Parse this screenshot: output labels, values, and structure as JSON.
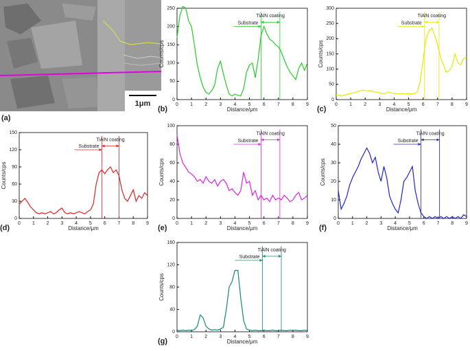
{
  "figure": {
    "panel_label": "(a)",
    "scale_bar": "1μm"
  },
  "chart_data": [
    {
      "type": "line",
      "panel_label": "(b)",
      "xlabel": "Distance/μm",
      "ylabel": "Counts/cps",
      "xlim": [
        0,
        9
      ],
      "xticks": [
        0,
        1,
        2,
        3,
        4,
        5,
        6,
        7,
        8,
        9
      ],
      "ylim": [
        0,
        250
      ],
      "yticks": [
        0,
        50,
        100,
        150,
        200,
        250
      ],
      "annotations": {
        "substrate": "Substrate",
        "coating": "TiAlN coating"
      },
      "markers": [
        5.8,
        7.1
      ],
      "x": [
        0,
        0.2,
        0.4,
        0.6,
        0.8,
        1,
        1.2,
        1.4,
        1.6,
        1.8,
        2,
        2.2,
        2.4,
        2.6,
        2.8,
        3,
        3.2,
        3.4,
        3.6,
        3.8,
        4,
        4.2,
        4.4,
        4.6,
        4.8,
        5,
        5.2,
        5.4,
        5.6,
        5.8,
        6,
        6.2,
        6.4,
        6.6,
        6.8,
        7,
        7.2,
        7.4,
        7.6,
        7.8,
        8,
        8.2,
        8.4,
        8.6,
        8.8,
        9
      ],
      "series": [
        {
          "color": "#22cc22",
          "values": [
            170,
            230,
            255,
            250,
            215,
            200,
            150,
            95,
            60,
            35,
            20,
            15,
            25,
            40,
            85,
            105,
            70,
            40,
            15,
            10,
            15,
            12,
            10,
            30,
            75,
            95,
            100,
            60,
            110,
            175,
            200,
            180,
            165,
            160,
            150,
            145,
            130,
            110,
            90,
            75,
            65,
            55,
            85,
            100,
            80,
            100
          ]
        }
      ]
    },
    {
      "type": "line",
      "panel_label": "(c)",
      "xlabel": "Distance/μm",
      "ylabel": "Counts/cps",
      "xlim": [
        0,
        9
      ],
      "xticks": [
        0,
        1,
        2,
        3,
        4,
        5,
        6,
        7,
        8,
        9
      ],
      "ylim": [
        0,
        300
      ],
      "yticks": [
        0,
        50,
        100,
        150,
        200,
        250,
        300
      ],
      "annotations": {
        "substrate": "Substrate",
        "coating": "TiAlN coating"
      },
      "markers": [
        6.1,
        7.1
      ],
      "x": [
        0,
        0.2,
        0.4,
        0.6,
        0.8,
        1,
        1.2,
        1.4,
        1.6,
        1.8,
        2,
        2.2,
        2.4,
        2.6,
        2.8,
        3,
        3.2,
        3.4,
        3.6,
        3.8,
        4,
        4.2,
        4.4,
        4.6,
        4.8,
        5,
        5.2,
        5.4,
        5.6,
        5.8,
        6,
        6.2,
        6.4,
        6.6,
        6.8,
        7,
        7.2,
        7.4,
        7.6,
        7.8,
        8,
        8.2,
        8.4,
        8.6,
        8.8,
        9
      ],
      "series": [
        {
          "color": "#e8e800",
          "values": [
            15,
            15,
            12,
            15,
            18,
            20,
            22,
            25,
            28,
            30,
            30,
            28,
            30,
            25,
            25,
            22,
            20,
            20,
            25,
            22,
            20,
            20,
            18,
            20,
            18,
            20,
            18,
            20,
            25,
            60,
            130,
            200,
            225,
            235,
            210,
            180,
            140,
            115,
            90,
            95,
            110,
            150,
            120,
            115,
            135,
            140
          ]
        }
      ]
    },
    {
      "type": "line",
      "panel_label": "(d)",
      "xlabel": "Distance/μm",
      "ylabel": "Counts/cps",
      "xlim": [
        0,
        9
      ],
      "xticks": [
        0,
        1,
        2,
        3,
        4,
        5,
        6,
        7,
        8,
        9
      ],
      "ylim": [
        0,
        150
      ],
      "yticks": [
        0,
        30,
        60,
        90,
        120,
        150
      ],
      "annotations": {
        "substrate": "Substrate",
        "coating": "TiAlN coating"
      },
      "markers": [
        5.8,
        7.0
      ],
      "x": [
        0,
        0.2,
        0.4,
        0.6,
        0.8,
        1,
        1.2,
        1.4,
        1.6,
        1.8,
        2,
        2.2,
        2.4,
        2.6,
        2.8,
        3,
        3.2,
        3.4,
        3.6,
        3.8,
        4,
        4.2,
        4.4,
        4.6,
        4.8,
        5,
        5.2,
        5.4,
        5.6,
        5.8,
        6,
        6.2,
        6.4,
        6.6,
        6.8,
        7,
        7.2,
        7.4,
        7.6,
        7.8,
        8,
        8.2,
        8.4,
        8.6,
        8.8,
        9
      ],
      "series": [
        {
          "color": "#e02020",
          "values": [
            25,
            30,
            35,
            28,
            20,
            15,
            10,
            8,
            10,
            8,
            10,
            12,
            8,
            10,
            15,
            18,
            10,
            8,
            10,
            8,
            10,
            12,
            10,
            8,
            12,
            15,
            25,
            60,
            80,
            85,
            78,
            85,
            90,
            80,
            85,
            75,
            50,
            35,
            30,
            40,
            50,
            30,
            40,
            35,
            45,
            40
          ]
        }
      ]
    },
    {
      "type": "line",
      "panel_label": "(e)",
      "xlabel": "Distance/μm",
      "ylabel": "Counts/cps",
      "xlim": [
        0,
        9
      ],
      "xticks": [
        0,
        1,
        2,
        3,
        4,
        5,
        6,
        7,
        8,
        9
      ],
      "ylim": [
        0,
        100
      ],
      "yticks": [
        0,
        20,
        40,
        60,
        80,
        100
      ],
      "annotations": {
        "substrate": "Substrate",
        "coating": "TiAlN coating"
      },
      "markers": [
        5.8,
        7.1
      ],
      "x": [
        0,
        0.2,
        0.4,
        0.6,
        0.8,
        1,
        1.2,
        1.4,
        1.6,
        1.8,
        2,
        2.2,
        2.4,
        2.6,
        2.8,
        3,
        3.2,
        3.4,
        3.6,
        3.8,
        4,
        4.2,
        4.4,
        4.6,
        4.8,
        5,
        5.2,
        5.4,
        5.6,
        5.8,
        6,
        6.2,
        6.4,
        6.6,
        6.8,
        7,
        7.2,
        7.4,
        7.6,
        7.8,
        8,
        8.2,
        8.4,
        8.6,
        8.8,
        9
      ],
      "series": [
        {
          "color": "#e020e0",
          "values": [
            90,
            70,
            60,
            55,
            50,
            48,
            45,
            40,
            42,
            38,
            45,
            40,
            38,
            42,
            35,
            40,
            42,
            38,
            30,
            32,
            28,
            25,
            30,
            50,
            38,
            40,
            25,
            30,
            20,
            25,
            20,
            22,
            18,
            25,
            20,
            22,
            20,
            25,
            22,
            18,
            20,
            25,
            28,
            20,
            22,
            25
          ]
        }
      ]
    },
    {
      "type": "line",
      "panel_label": "(f)",
      "xlabel": "Distance/μm",
      "ylabel": "Counts/cps",
      "xlim": [
        0,
        9
      ],
      "xticks": [
        0,
        1,
        2,
        3,
        4,
        5,
        6,
        7,
        8,
        9
      ],
      "ylim": [
        0,
        50
      ],
      "yticks": [
        0,
        10,
        20,
        30,
        40,
        50
      ],
      "annotations": {
        "substrate": "Substrate",
        "coating": "TiAlN coating"
      },
      "markers": [
        5.8,
        7.1
      ],
      "x": [
        0,
        0.2,
        0.4,
        0.6,
        0.8,
        1,
        1.2,
        1.4,
        1.6,
        1.8,
        2,
        2.2,
        2.4,
        2.6,
        2.8,
        3,
        3.2,
        3.4,
        3.6,
        3.8,
        4,
        4.2,
        4.4,
        4.6,
        4.8,
        5,
        5.2,
        5.4,
        5.6,
        5.8,
        6,
        6.2,
        6.4,
        6.6,
        6.8,
        7,
        7.2,
        7.4,
        7.6,
        7.8,
        8,
        8.2,
        8.4,
        8.6,
        8.8,
        9
      ],
      "series": [
        {
          "color": "#2020d0",
          "values": [
            15,
            5,
            8,
            12,
            18,
            22,
            25,
            28,
            32,
            35,
            38,
            35,
            30,
            33,
            25,
            20,
            28,
            22,
            12,
            8,
            5,
            3,
            10,
            20,
            22,
            25,
            28,
            15,
            8,
            3,
            1,
            0,
            1,
            0,
            1,
            0,
            1,
            0,
            1,
            0,
            1,
            0,
            1,
            0,
            2,
            1
          ]
        }
      ]
    },
    {
      "type": "line",
      "panel_label": "(g)",
      "xlabel": "Distance/μm",
      "ylabel": "Counts/cps",
      "xlim": [
        0,
        9
      ],
      "xticks": [
        0,
        1,
        2,
        3,
        4,
        5,
        6,
        7,
        8,
        9
      ],
      "ylim": [
        0,
        160
      ],
      "yticks": [
        0,
        40,
        80,
        120,
        160
      ],
      "annotations": {
        "substrate": "Substrate",
        "coating": "TiAlN coating"
      },
      "markers": [
        5.9,
        7.2
      ],
      "x": [
        0,
        0.2,
        0.4,
        0.6,
        0.8,
        1,
        1.2,
        1.4,
        1.6,
        1.8,
        2,
        2.2,
        2.4,
        2.6,
        2.8,
        3,
        3.2,
        3.4,
        3.6,
        3.8,
        4,
        4.2,
        4.4,
        4.6,
        4.8,
        5,
        5.2,
        5.4,
        5.6,
        5.8,
        6,
        6.2,
        6.4,
        6.6,
        6.8,
        7,
        7.2,
        7.4,
        7.6,
        7.8,
        8,
        8.2,
        8.4,
        8.6,
        8.8,
        9
      ],
      "series": [
        {
          "color": "#108878",
          "values": [
            3,
            2,
            3,
            2,
            3,
            2,
            4,
            10,
            30,
            25,
            10,
            5,
            3,
            4,
            3,
            5,
            8,
            40,
            80,
            90,
            110,
            110,
            60,
            20,
            5,
            3,
            2,
            3,
            2,
            2,
            3,
            2,
            2,
            3,
            2,
            2,
            3,
            2,
            2,
            3,
            2,
            3,
            2,
            2,
            3,
            2
          ]
        }
      ]
    }
  ]
}
